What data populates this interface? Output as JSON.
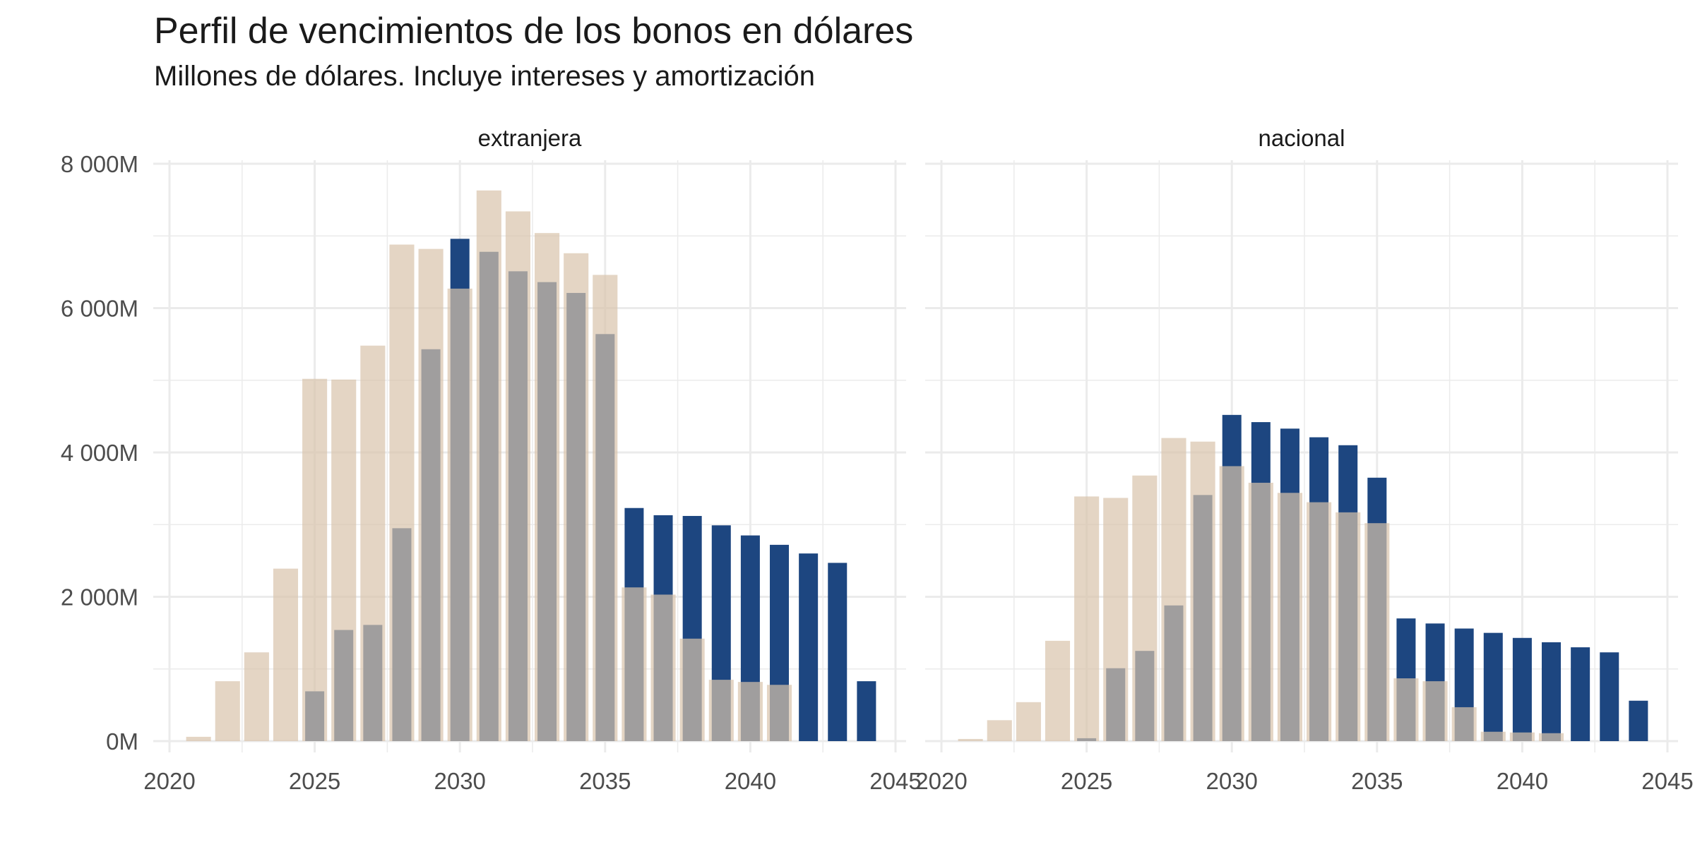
{
  "title": "Perfil de vencimientos de los bonos en dólares",
  "subtitle": "Millones de dólares. Incluye intereses y amortización",
  "colors": {
    "series_a": "#d9c3ab",
    "series_b": "#1d4680",
    "overlap": "#666e7b",
    "grid": "#ebebeb",
    "axis_text": "#4d4d4d",
    "strip_text": "#1a1a1a"
  },
  "chart_data": [
    {
      "type": "bar",
      "panel": "extranjera",
      "grid": true,
      "legend": "none",
      "xlim": [
        2020,
        2045
      ],
      "ylim": [
        0,
        8000
      ],
      "x_ticks": [
        2020,
        2025,
        2030,
        2035,
        2040,
        2045
      ],
      "x_tick_labels": [
        "2020",
        "2025",
        "2030",
        "2035",
        "2040",
        "2045"
      ],
      "y_ticks": [
        0,
        2000,
        4000,
        6000,
        8000
      ],
      "y_tick_labels": [
        "0M",
        "2 000M",
        "4 000M",
        "6 000M",
        "8 000M"
      ],
      "series": [
        {
          "x": [
            2021,
            2022,
            2023,
            2024,
            2025,
            2026,
            2027,
            2028,
            2029,
            2030,
            2031,
            2032,
            2033,
            2034,
            2035,
            2036,
            2037,
            2038,
            2039,
            2040,
            2041
          ],
          "values": [
            60,
            830,
            1230,
            2390,
            5020,
            5010,
            5480,
            6880,
            6820,
            6270,
            7630,
            7340,
            7040,
            6760,
            6460,
            2130,
            2030,
            1420,
            850,
            820,
            780
          ]
        },
        {
          "x": [
            2025,
            2026,
            2027,
            2028,
            2029,
            2030,
            2031,
            2032,
            2033,
            2034,
            2035,
            2036,
            2037,
            2038,
            2039,
            2040,
            2041,
            2042,
            2043,
            2044
          ],
          "values": [
            690,
            1540,
            1610,
            2950,
            5430,
            6960,
            6780,
            6510,
            6360,
            6210,
            5640,
            3230,
            3130,
            3120,
            2990,
            2850,
            2720,
            2600,
            2470,
            830
          ]
        }
      ]
    },
    {
      "type": "bar",
      "panel": "nacional",
      "grid": true,
      "legend": "none",
      "xlim": [
        2020,
        2045
      ],
      "ylim": [
        0,
        8000
      ],
      "x_ticks": [
        2020,
        2025,
        2030,
        2035,
        2040,
        2045
      ],
      "x_tick_labels": [
        "2020",
        "2025",
        "2030",
        "2035",
        "2040",
        "2045"
      ],
      "y_ticks": [
        0,
        2000,
        4000,
        6000,
        8000
      ],
      "y_tick_labels": [
        "0M",
        "2 000M",
        "4 000M",
        "6 000M",
        "8 000M"
      ],
      "series": [
        {
          "x": [
            2021,
            2022,
            2023,
            2024,
            2025,
            2026,
            2027,
            2028,
            2029,
            2030,
            2031,
            2032,
            2033,
            2034,
            2035,
            2036,
            2037,
            2038,
            2039,
            2040,
            2041
          ],
          "values": [
            30,
            290,
            540,
            1390,
            3390,
            3370,
            3680,
            4200,
            4150,
            3810,
            3580,
            3440,
            3310,
            3170,
            3020,
            870,
            830,
            470,
            130,
            120,
            110
          ]
        },
        {
          "x": [
            2025,
            2026,
            2027,
            2028,
            2029,
            2030,
            2031,
            2032,
            2033,
            2034,
            2035,
            2036,
            2037,
            2038,
            2039,
            2040,
            2041,
            2042,
            2043,
            2044
          ],
          "values": [
            40,
            1010,
            1250,
            1880,
            3410,
            4520,
            4420,
            4330,
            4210,
            4100,
            3650,
            1700,
            1630,
            1560,
            1500,
            1430,
            1370,
            1300,
            1230,
            560
          ]
        }
      ]
    }
  ]
}
